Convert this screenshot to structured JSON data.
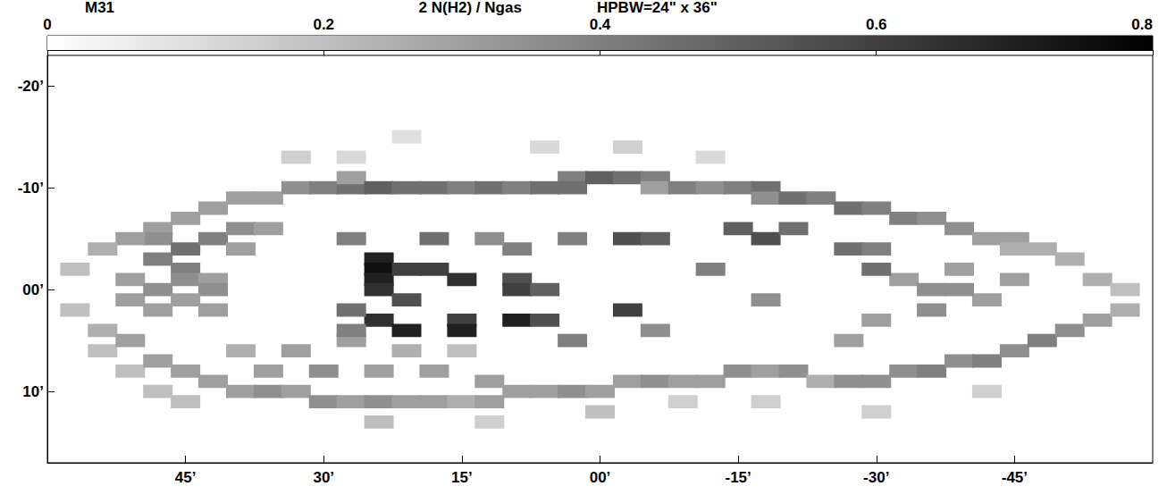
{
  "chart_data": {
    "type": "heatmap",
    "title": "2 N(H2) / Ngas",
    "annotations": [
      "M31",
      "HPBW=24\" x 36\""
    ],
    "xlim": [
      60,
      -60
    ],
    "xticks": [
      {
        "value": 45,
        "label": "45’"
      },
      {
        "value": 30,
        "label": "30’"
      },
      {
        "value": 15,
        "label": "15’"
      },
      {
        "value": 0,
        "label": "00’"
      },
      {
        "value": -15,
        "label": "-15’"
      },
      {
        "value": -30,
        "label": "-30’"
      },
      {
        "value": -45,
        "label": "-45’"
      }
    ],
    "ylim": [
      17,
      -23
    ],
    "yticks": [
      {
        "value": -20,
        "label": "-20’"
      },
      {
        "value": -10,
        "label": "-10’"
      },
      {
        "value": 0,
        "label": "00’"
      },
      {
        "value": 10,
        "label": "10’"
      }
    ],
    "grid": false,
    "colorbar": {
      "range": [
        0,
        0.8
      ],
      "ticks": [
        0,
        0.2,
        0.4,
        0.6,
        0.8
      ]
    },
    "cells": [
      [
        36,
        -9,
        0.3
      ],
      [
        33,
        -10,
        0.35
      ],
      [
        30,
        -10,
        0.4
      ],
      [
        27,
        -10,
        0.45
      ],
      [
        27,
        -11,
        0.3
      ],
      [
        24,
        -10,
        0.5
      ],
      [
        21,
        -10,
        0.45
      ],
      [
        18,
        -10,
        0.45
      ],
      [
        15,
        -10,
        0.4
      ],
      [
        12,
        -10,
        0.45
      ],
      [
        9,
        -10,
        0.4
      ],
      [
        6,
        -10,
        0.45
      ],
      [
        3,
        -11,
        0.4
      ],
      [
        3,
        -10,
        0.45
      ],
      [
        0,
        -11,
        0.5
      ],
      [
        -3,
        -11,
        0.45
      ],
      [
        -6,
        -11,
        0.4
      ],
      [
        -6,
        -10,
        0.3
      ],
      [
        -9,
        -10,
        0.4
      ],
      [
        -12,
        -10,
        0.35
      ],
      [
        -15,
        -10,
        0.4
      ],
      [
        -18,
        -10,
        0.45
      ],
      [
        -18,
        -9,
        0.35
      ],
      [
        -21,
        -9,
        0.45
      ],
      [
        -24,
        -9,
        0.4
      ],
      [
        -27,
        -8,
        0.45
      ],
      [
        -30,
        -8,
        0.4
      ],
      [
        -33,
        -7,
        0.4
      ],
      [
        -36,
        -7,
        0.35
      ],
      [
        -39,
        -6,
        0.35
      ],
      [
        -42,
        -5,
        0.3
      ],
      [
        -45,
        -5,
        0.3
      ],
      [
        -45,
        -4,
        0.25
      ],
      [
        -48,
        -4,
        0.25
      ],
      [
        -51,
        -3,
        0.25
      ],
      [
        -54,
        -1,
        0.25
      ],
      [
        -57,
        0,
        0.2
      ],
      [
        33,
        -13,
        0.15
      ],
      [
        21,
        -15,
        0.1
      ],
      [
        6,
        -14,
        0.12
      ],
      [
        -3,
        -14,
        0.15
      ],
      [
        -12,
        -13,
        0.12
      ],
      [
        27,
        -13,
        0.12
      ],
      [
        39,
        -9,
        0.3
      ],
      [
        42,
        -8,
        0.3
      ],
      [
        45,
        -7,
        0.3
      ],
      [
        48,
        -6,
        0.3
      ],
      [
        48,
        -5,
        0.35
      ],
      [
        51,
        -5,
        0.3
      ],
      [
        54,
        -4,
        0.25
      ],
      [
        57,
        -2,
        0.2
      ],
      [
        48,
        -3,
        0.4
      ],
      [
        45,
        -4,
        0.45
      ],
      [
        45,
        -2,
        0.4
      ],
      [
        45,
        -1,
        0.35
      ],
      [
        42,
        -5,
        0.4
      ],
      [
        42,
        -1,
        0.3
      ],
      [
        42,
        0,
        0.35
      ],
      [
        39,
        -6,
        0.35
      ],
      [
        39,
        -4,
        0.3
      ],
      [
        36,
        -6,
        0.3
      ],
      [
        51,
        -1,
        0.3
      ],
      [
        51,
        1,
        0.3
      ],
      [
        48,
        0,
        0.35
      ],
      [
        48,
        2,
        0.3
      ],
      [
        45,
        1,
        0.3
      ],
      [
        42,
        2,
        0.3
      ],
      [
        57,
        2,
        0.2
      ],
      [
        54,
        4,
        0.25
      ],
      [
        54,
        6,
        0.2
      ],
      [
        51,
        5,
        0.3
      ],
      [
        51,
        8,
        0.2
      ],
      [
        48,
        7,
        0.3
      ],
      [
        48,
        10,
        0.2
      ],
      [
        45,
        8,
        0.3
      ],
      [
        45,
        11,
        0.2
      ],
      [
        42,
        9,
        0.3
      ],
      [
        39,
        10,
        0.3
      ],
      [
        36,
        10,
        0.35
      ],
      [
        33,
        10,
        0.3
      ],
      [
        30,
        11,
        0.35
      ],
      [
        27,
        11,
        0.3
      ],
      [
        24,
        11,
        0.35
      ],
      [
        21,
        11,
        0.3
      ],
      [
        18,
        11,
        0.3
      ],
      [
        15,
        11,
        0.25
      ],
      [
        12,
        11,
        0.3
      ],
      [
        9,
        10,
        0.3
      ],
      [
        6,
        10,
        0.3
      ],
      [
        3,
        10,
        0.35
      ],
      [
        0,
        10,
        0.3
      ],
      [
        -3,
        9,
        0.3
      ],
      [
        -6,
        9,
        0.35
      ],
      [
        -9,
        9,
        0.3
      ],
      [
        -12,
        9,
        0.3
      ],
      [
        -15,
        8,
        0.35
      ],
      [
        -18,
        8,
        0.3
      ],
      [
        -21,
        8,
        0.35
      ],
      [
        -24,
        9,
        0.25
      ],
      [
        36,
        8,
        0.3
      ],
      [
        30,
        8,
        0.35
      ],
      [
        24,
        8,
        0.3
      ],
      [
        18,
        8,
        0.3
      ],
      [
        12,
        9,
        0.3
      ],
      [
        24,
        13,
        0.2
      ],
      [
        12,
        13,
        0.15
      ],
      [
        0,
        12,
        0.2
      ],
      [
        -9,
        11,
        0.15
      ],
      [
        -18,
        11,
        0.15
      ],
      [
        39,
        6,
        0.25
      ],
      [
        33,
        6,
        0.3
      ],
      [
        27,
        5,
        0.3
      ],
      [
        21,
        6,
        0.25
      ],
      [
        15,
        6,
        0.2
      ],
      [
        -27,
        9,
        0.35
      ],
      [
        -30,
        9,
        0.35
      ],
      [
        -33,
        8,
        0.35
      ],
      [
        -36,
        8,
        0.4
      ],
      [
        -39,
        7,
        0.35
      ],
      [
        -42,
        7,
        0.4
      ],
      [
        -45,
        6,
        0.35
      ],
      [
        -48,
        5,
        0.4
      ],
      [
        -51,
        4,
        0.35
      ],
      [
        -54,
        3,
        0.3
      ],
      [
        -57,
        2,
        0.25
      ],
      [
        -30,
        3,
        0.3
      ],
      [
        -36,
        2,
        0.35
      ],
      [
        -42,
        1,
        0.3
      ],
      [
        -45,
        -1,
        0.3
      ],
      [
        -33,
        -1,
        0.3
      ],
      [
        -39,
        -2,
        0.3
      ],
      [
        -27,
        5,
        0.3
      ],
      [
        -30,
        12,
        0.15
      ],
      [
        -42,
        10,
        0.15
      ],
      [
        24,
        -3,
        0.7
      ],
      [
        24,
        -2,
        0.75
      ],
      [
        24,
        -1,
        0.7
      ],
      [
        24,
        0,
        0.65
      ],
      [
        21,
        -2,
        0.6
      ],
      [
        21,
        1,
        0.55
      ],
      [
        18,
        -2,
        0.6
      ],
      [
        15,
        -1,
        0.65
      ],
      [
        9,
        -1,
        0.55
      ],
      [
        9,
        0,
        0.6
      ],
      [
        6,
        0,
        0.5
      ],
      [
        24,
        3,
        0.65
      ],
      [
        21,
        4,
        0.7
      ],
      [
        15,
        3,
        0.6
      ],
      [
        15,
        4,
        0.7
      ],
      [
        9,
        3,
        0.7
      ],
      [
        6,
        3,
        0.55
      ],
      [
        27,
        2,
        0.45
      ],
      [
        27,
        4,
        0.4
      ],
      [
        18,
        -5,
        0.45
      ],
      [
        -3,
        2,
        0.6
      ],
      [
        3,
        5,
        0.4
      ],
      [
        -6,
        4,
        0.35
      ],
      [
        -3,
        -5,
        0.55
      ],
      [
        -6,
        -5,
        0.5
      ],
      [
        -15,
        -6,
        0.5
      ],
      [
        -18,
        -5,
        0.55
      ],
      [
        -21,
        -6,
        0.45
      ],
      [
        -27,
        -4,
        0.45
      ],
      [
        -30,
        -4,
        0.4
      ],
      [
        -12,
        -2,
        0.4
      ],
      [
        -18,
        1,
        0.35
      ],
      [
        -30,
        -2,
        0.45
      ],
      [
        -36,
        0,
        0.35
      ],
      [
        -39,
        0,
        0.35
      ],
      [
        27,
        -5,
        0.4
      ],
      [
        9,
        -4,
        0.4
      ],
      [
        3,
        -5,
        0.4
      ],
      [
        12,
        -5,
        0.35
      ]
    ]
  }
}
